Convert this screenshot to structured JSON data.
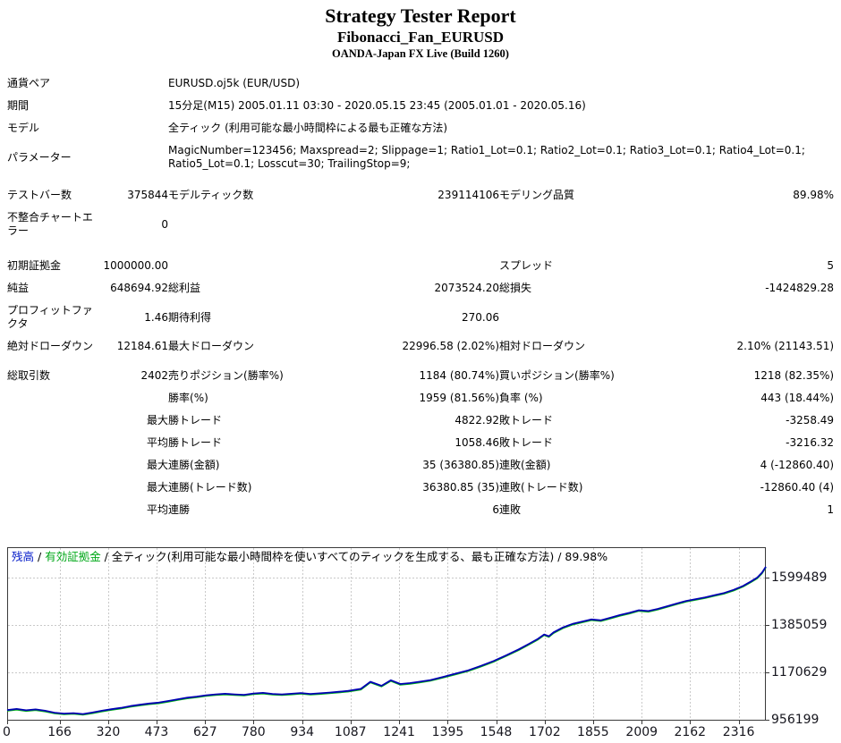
{
  "header": {
    "title": "Strategy Tester Report",
    "symbol_line": "Fibonacci_Fan_EURUSD",
    "broker_line": "OANDA-Japan FX Live (Build 1260)"
  },
  "info_rows": [
    {
      "label": "通貨ペア",
      "value": "EURUSD.oj5k (EUR/USD)"
    },
    {
      "label": "期間",
      "value": "15分足(M15) 2005.01.11 03:30 - 2020.05.15 23:45 (2005.01.01 - 2020.05.16)"
    },
    {
      "label": "モデル",
      "value": "全ティック (利用可能な最小時間枠による最も正確な方法)"
    },
    {
      "label": "パラメーター",
      "value": "MagicNumber=123456; Maxspread=2; Slippage=1; Ratio1_Lot=0.1; Ratio2_Lot=0.1; Ratio3_Lot=0.1; Ratio4_Lot=0.1; Ratio5_Lot=0.1; Losscut=30; TrailingStop=9;"
    }
  ],
  "stats": {
    "rows": [
      {
        "c1": "テストバー数",
        "c2": "375844",
        "c3": "モデルティック数",
        "c4": "239114106",
        "c5": "モデリング品質",
        "c6": "89.98%"
      },
      {
        "c1": "不整合チャートエラー",
        "c2": "0",
        "c3": "",
        "c4": "",
        "c5": "",
        "c6": ""
      },
      {
        "c1": "初期証拠金",
        "c2": "1000000.00",
        "c3": "",
        "c4": "",
        "c5": "スプレッド",
        "c6": "5"
      },
      {
        "c1": "純益",
        "c2": "648694.92",
        "c3": "総利益",
        "c4": "2073524.20",
        "c5": "総損失",
        "c6": "-1424829.28"
      },
      {
        "c1": "プロフィットファクタ",
        "c2": "1.46",
        "c3": "期待利得",
        "c4": "270.06",
        "c5": "",
        "c6": ""
      },
      {
        "c1": "絶対ドローダウン",
        "c2": "12184.61",
        "c3": "最大ドローダウン",
        "c4": "22996.58 (2.02%)",
        "c5": "相対ドローダウン",
        "c6": "2.10% (21143.51)"
      },
      {
        "c1": "総取引数",
        "c2": "2402",
        "c3": "売りポジション(勝率%)",
        "c4": "1184 (80.74%)",
        "c5": "買いポジション(勝率%)",
        "c6": "1218 (82.35%)"
      },
      {
        "c1": "",
        "c2": "",
        "c3": "勝率(%)",
        "c4": "1959 (81.56%)",
        "c5": "負率 (%)",
        "c6": "443 (18.44%)"
      },
      {
        "c1": "",
        "c2": "最大",
        "c3": "勝トレード",
        "c4": "4822.92",
        "c5": "敗トレード",
        "c6": "-3258.49"
      },
      {
        "c1": "",
        "c2": "平均",
        "c3": "勝トレード",
        "c4": "1058.46",
        "c5": "敗トレード",
        "c6": "-3216.32"
      },
      {
        "c1": "",
        "c2": "最大",
        "c3": "連勝(金額)",
        "c4": "35 (36380.85)",
        "c5": "連敗(金額)",
        "c6": "4 (-12860.40)"
      },
      {
        "c1": "",
        "c2": "最大",
        "c3": "連勝(トレード数)",
        "c4": "36380.85 (35)",
        "c5": "連敗(トレード数)",
        "c6": "-12860.40 (4)"
      },
      {
        "c1": "",
        "c2": "平均",
        "c3": "連勝",
        "c4": "6",
        "c5": "連敗",
        "c6": "1"
      }
    ]
  },
  "chart_data": {
    "type": "line",
    "legend": [
      {
        "label": "残高",
        "color": "#0018c8"
      },
      {
        "label": "有効証拠金",
        "color": "#00a818"
      },
      {
        "label": "全ティック(利用可能な最小時間枠を使いすべてのティックを生成する、最も正確な方法) / 89.98%",
        "color": "#000000"
      }
    ],
    "legend_separator": " / ",
    "x_ticks": [
      0,
      166,
      320,
      473,
      627,
      780,
      934,
      1087,
      1241,
      1395,
      1548,
      1702,
      1855,
      2009,
      2162,
      2316
    ],
    "y_ticks": [
      956199,
      1170629,
      1385059,
      1599489
    ],
    "x_max": 2402,
    "grid": true,
    "series": [
      {
        "name": "残高",
        "color": "#0000b4"
      },
      {
        "name": "有効証拠金",
        "color": "#00b414"
      }
    ],
    "points": [
      [
        0,
        1000000
      ],
      [
        30,
        1005000
      ],
      [
        60,
        999000
      ],
      [
        90,
        1003000
      ],
      [
        120,
        997000
      ],
      [
        150,
        988000
      ],
      [
        180,
        984000
      ],
      [
        210,
        986000
      ],
      [
        240,
        982000
      ],
      [
        270,
        989000
      ],
      [
        300,
        997000
      ],
      [
        330,
        1004000
      ],
      [
        360,
        1010000
      ],
      [
        390,
        1018000
      ],
      [
        420,
        1024000
      ],
      [
        450,
        1030000
      ],
      [
        480,
        1034000
      ],
      [
        510,
        1041000
      ],
      [
        540,
        1049000
      ],
      [
        570,
        1056000
      ],
      [
        600,
        1061000
      ],
      [
        630,
        1067000
      ],
      [
        660,
        1071000
      ],
      [
        690,
        1074000
      ],
      [
        720,
        1071000
      ],
      [
        750,
        1069000
      ],
      [
        780,
        1075000
      ],
      [
        810,
        1078000
      ],
      [
        840,
        1073000
      ],
      [
        870,
        1071000
      ],
      [
        900,
        1074000
      ],
      [
        930,
        1077000
      ],
      [
        960,
        1073000
      ],
      [
        990,
        1076000
      ],
      [
        1020,
        1079000
      ],
      [
        1050,
        1083000
      ],
      [
        1080,
        1087000
      ],
      [
        1120,
        1096000
      ],
      [
        1150,
        1128000
      ],
      [
        1185,
        1110000
      ],
      [
        1215,
        1135000
      ],
      [
        1245,
        1118000
      ],
      [
        1275,
        1122000
      ],
      [
        1305,
        1128000
      ],
      [
        1340,
        1136000
      ],
      [
        1380,
        1150000
      ],
      [
        1420,
        1165000
      ],
      [
        1460,
        1180000
      ],
      [
        1500,
        1200000
      ],
      [
        1540,
        1222000
      ],
      [
        1580,
        1248000
      ],
      [
        1620,
        1275000
      ],
      [
        1650,
        1298000
      ],
      [
        1680,
        1322000
      ],
      [
        1700,
        1342000
      ],
      [
        1715,
        1334000
      ],
      [
        1730,
        1352000
      ],
      [
        1760,
        1374000
      ],
      [
        1790,
        1390000
      ],
      [
        1820,
        1400000
      ],
      [
        1850,
        1410000
      ],
      [
        1880,
        1406000
      ],
      [
        1910,
        1418000
      ],
      [
        1940,
        1430000
      ],
      [
        1970,
        1440000
      ],
      [
        2000,
        1452000
      ],
      [
        2030,
        1448000
      ],
      [
        2060,
        1458000
      ],
      [
        2090,
        1470000
      ],
      [
        2120,
        1482000
      ],
      [
        2150,
        1494000
      ],
      [
        2180,
        1502000
      ],
      [
        2210,
        1510000
      ],
      [
        2240,
        1520000
      ],
      [
        2270,
        1530000
      ],
      [
        2300,
        1544000
      ],
      [
        2330,
        1562000
      ],
      [
        2355,
        1582000
      ],
      [
        2375,
        1600000
      ],
      [
        2390,
        1622000
      ],
      [
        2402,
        1648695
      ]
    ]
  }
}
